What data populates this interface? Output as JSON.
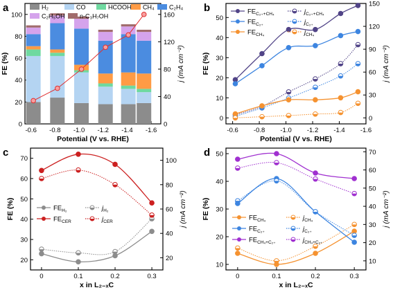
{
  "figure": {
    "panels": [
      "a",
      "b",
      "c",
      "d"
    ]
  },
  "chart_data": [
    {
      "panel": "a",
      "type": "bar",
      "stacked": true,
      "secondary_axis": true,
      "categories": [
        "-0.6",
        "-0.8",
        "-1.0",
        "-1.2",
        "-1.4",
        "-1.6"
      ],
      "bar_x": [
        -0.62,
        -0.82,
        -1.02,
        -1.22,
        -1.41,
        -1.54
      ],
      "xlabel": "Potential (V vs. RHE)",
      "ylabel": "FE (%)",
      "ylabel_right": "j (mA cm⁻²)",
      "xlim": [
        -0.55,
        -1.68
      ],
      "ylim": [
        0,
        110
      ],
      "ylim_right": [
        0,
        176
      ],
      "yticks": [
        0,
        20,
        40,
        60,
        80,
        100
      ],
      "yticks_right": [
        0,
        40,
        80,
        120,
        160
      ],
      "legend_position": "top",
      "series": [
        {
          "name": "H₂",
          "color": "#8c8c8c",
          "values": [
            20,
            24,
            19,
            18,
            18,
            19
          ]
        },
        {
          "name": "CO",
          "color": "#b4d4f2",
          "values": [
            42,
            38,
            28,
            16,
            14,
            10
          ]
        },
        {
          "name": "HCOOH",
          "color": "#6fd9a0",
          "values": [
            6,
            3,
            2,
            3,
            3,
            3
          ]
        },
        {
          "name": "CH₄",
          "color": "#ff9b45",
          "values": [
            3,
            3,
            5,
            9,
            12,
            14
          ]
        },
        {
          "name": "C₂H₄",
          "color": "#4b8ce0",
          "values": [
            11,
            24,
            33,
            30,
            35,
            30
          ]
        },
        {
          "name": "C₂H₅OH",
          "color": "#d5a3ec",
          "values": [
            6,
            7,
            9,
            8,
            7,
            8
          ]
        },
        {
          "name": "n-C₃H₇OH",
          "color": "#a16c6c",
          "values": [
            2,
            2,
            2,
            2,
            2,
            2
          ]
        }
      ],
      "line": {
        "name": "j",
        "color": "#e03030",
        "values": [
          34,
          52,
          80,
          112,
          130,
          160
        ]
      },
      "bar_totals": [
        90,
        101,
        98,
        86,
        91,
        86
      ]
    },
    {
      "panel": "b",
      "type": "line",
      "secondary_axis": true,
      "xlabel": "Potential (V vs. RHE)",
      "ylabel": "FE (%)",
      "ylabel_right": "j (mA cm⁻²)",
      "xlim": [
        -0.55,
        -1.6
      ],
      "ylim": [
        -3,
        57
      ],
      "ylim_right": [
        -7.9,
        150
      ],
      "xticks": [
        -0.6,
        -0.8,
        -1.0,
        -1.2,
        -1.4,
        -1.6
      ],
      "yticks": [
        0,
        10,
        20,
        30,
        40,
        50
      ],
      "yticks_right": [
        0,
        30,
        60,
        90,
        120,
        150
      ],
      "x": [
        -0.62,
        -0.82,
        -1.02,
        -1.22,
        -1.41,
        -1.54
      ],
      "legend_position": "top-left",
      "series": [
        {
          "name": "FE_C₂₊+CH₄",
          "axis": "left",
          "style": "solid",
          "color": "#514487",
          "values": [
            19,
            32,
            44,
            44,
            52,
            56
          ]
        },
        {
          "name": "j_C₂₊+CH₄",
          "axis": "right",
          "style": "dotted",
          "color": "#514487",
          "values": [
            4,
            15,
            34,
            51,
            71,
            96
          ]
        },
        {
          "name": "FE_C₂₊",
          "axis": "left",
          "style": "solid",
          "color": "#3d85e0",
          "values": [
            17,
            26,
            35,
            36,
            41,
            43
          ]
        },
        {
          "name": "j_C₂₊",
          "axis": "right",
          "style": "dotted",
          "color": "#3d85e0",
          "values": [
            2,
            13,
            26,
            40,
            55,
            71
          ]
        },
        {
          "name": "FE_CH₄",
          "axis": "left",
          "style": "solid",
          "color": "#f59230",
          "values": [
            2,
            6,
            9,
            9,
            10,
            13
          ]
        },
        {
          "name": "j_CH₄",
          "axis": "right",
          "style": "dotted",
          "color": "#f59230",
          "values": [
            0,
            1.5,
            3,
            5,
            7,
            19
          ]
        }
      ]
    },
    {
      "panel": "c",
      "type": "line",
      "secondary_axis": true,
      "xlabel": "x in L₂₋ₓC",
      "ylabel": "FE (%)",
      "ylabel_right": "j (mA cm⁻²)",
      "xlim": [
        -0.03,
        0.33
      ],
      "ylim": [
        15,
        75
      ],
      "ylim_right": [
        10,
        110
      ],
      "xticks": [
        0.0,
        0.1,
        0.2,
        0.3
      ],
      "yticks": [
        20,
        30,
        40,
        50,
        60,
        70
      ],
      "yticks_right": [
        20,
        40,
        60,
        80,
        100
      ],
      "x": [
        0,
        0.1,
        0.2,
        0.3
      ],
      "legend_position": "bottom-left",
      "series": [
        {
          "name": "FE_H₂",
          "axis": "left",
          "style": "solid",
          "color": "#8c8c8c",
          "values": [
            23,
            19,
            22,
            34
          ]
        },
        {
          "name": "j_H₂",
          "axis": "right",
          "style": "dotted",
          "color": "#8c8c8c",
          "values": [
            27,
            24,
            25,
            52
          ]
        },
        {
          "name": "FE_CER",
          "axis": "left",
          "style": "solid",
          "color": "#cc2020",
          "values": [
            64,
            72,
            67,
            48
          ]
        },
        {
          "name": "j_CER",
          "axis": "right",
          "style": "dotted",
          "color": "#cc2020",
          "values": [
            85,
            92,
            80,
            55
          ]
        }
      ]
    },
    {
      "panel": "d",
      "type": "line",
      "secondary_axis": true,
      "xlabel": "x in L₂₋ₓC",
      "ylabel": "FE (%)",
      "ylabel_right": "j (mA cm⁻²)",
      "xlim": [
        -0.03,
        0.33
      ],
      "ylim": [
        8,
        52
      ],
      "ylim_right": [
        5,
        72
      ],
      "xticks": [
        0.0,
        0.1,
        0.2,
        0.3
      ],
      "yticks": [
        10,
        20,
        30,
        40,
        50
      ],
      "yticks_right": [
        10,
        20,
        30,
        40,
        50,
        60,
        70
      ],
      "x": [
        0,
        0.1,
        0.2,
        0.3
      ],
      "legend_position": "bottom-left",
      "series": [
        {
          "name": "FE_CH₄",
          "axis": "left",
          "style": "solid",
          "color": "#f59230",
          "values": [
            14,
            10,
            14,
            22
          ]
        },
        {
          "name": "j_CH₄",
          "axis": "right",
          "style": "dotted",
          "color": "#f59230",
          "values": [
            17,
            10,
            18,
            30
          ]
        },
        {
          "name": "FE_C₂₊",
          "axis": "left",
          "style": "solid",
          "color": "#3d85e0",
          "values": [
            32,
            41,
            29,
            18
          ]
        },
        {
          "name": "j_C₂₊",
          "axis": "right",
          "style": "dotted",
          "color": "#3d85e0",
          "values": [
            43,
            54,
            37,
            24
          ]
        },
        {
          "name": "FE_CH₄+C₂₊",
          "axis": "left",
          "style": "solid",
          "color": "#a030d0",
          "values": [
            48,
            50,
            43,
            41
          ]
        },
        {
          "name": "j_CH₄+C₂₊",
          "axis": "right",
          "style": "dotted",
          "color": "#a030d0",
          "values": [
            61,
            64,
            55,
            47
          ]
        }
      ]
    }
  ]
}
